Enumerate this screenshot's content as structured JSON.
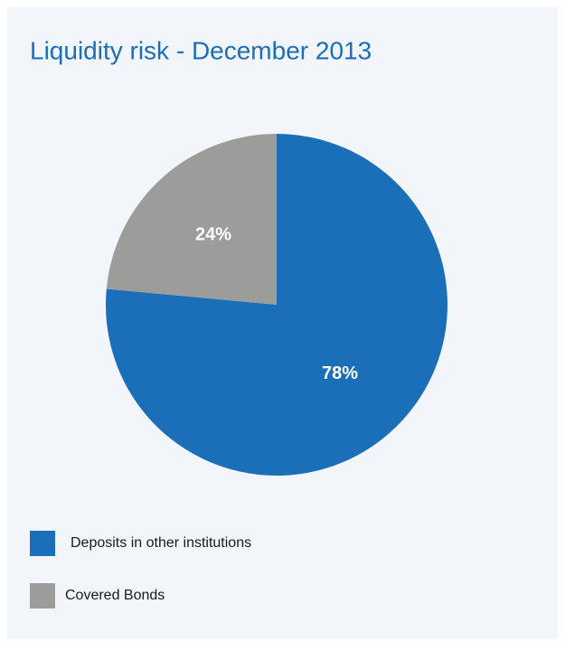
{
  "chart_data": {
    "type": "pie",
    "title": "Liquidity risk - December 2013",
    "categories": [
      "Deposits in other institutions",
      "Covered Bonds"
    ],
    "values": [
      78,
      24
    ],
    "value_labels": [
      "78%",
      "24%"
    ],
    "colors": [
      "#1b6fb9",
      "#9c9c9b"
    ]
  }
}
